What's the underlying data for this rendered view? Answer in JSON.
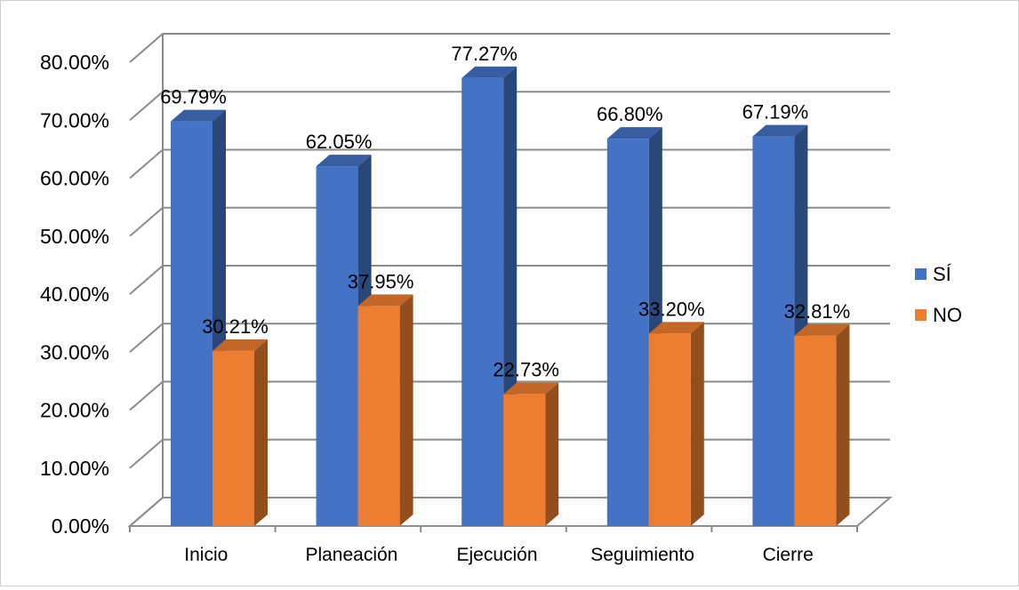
{
  "chart_data": {
    "type": "bar",
    "style": "3d-clustered-column",
    "categories": [
      "Inicio",
      "Planeación",
      "Ejecución",
      "Seguimiento",
      "Cierre"
    ],
    "series": [
      {
        "name": "SÍ",
        "color": "#4472C4",
        "values": [
          69.79,
          62.05,
          77.27,
          66.8,
          67.19
        ],
        "labels": [
          "69.79%",
          "62.05%",
          "77.27%",
          "66.80%",
          "67.19%"
        ]
      },
      {
        "name": "NO",
        "color": "#ED7D31",
        "values": [
          30.21,
          37.95,
          22.73,
          33.2,
          32.81
        ],
        "labels": [
          "30.21%",
          "37.95%",
          "22.73%",
          "33.20%",
          "32.81%"
        ]
      }
    ],
    "ylim": [
      0,
      80
    ],
    "yticks": [
      "0.00%",
      "10.00%",
      "20.00%",
      "30.00%",
      "40.00%",
      "50.00%",
      "60.00%",
      "70.00%",
      "80.00%"
    ],
    "grid": true,
    "legend": "right"
  }
}
